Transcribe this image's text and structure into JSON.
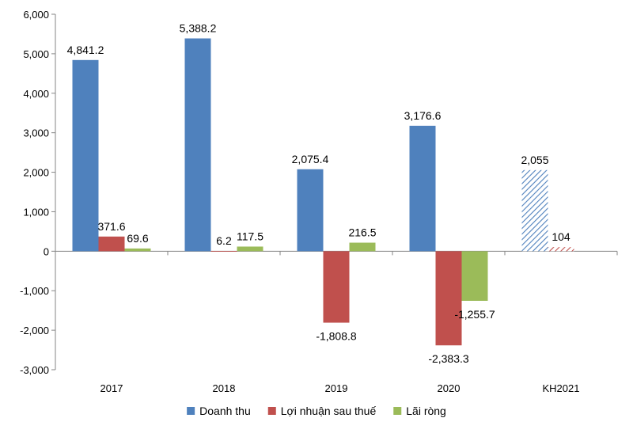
{
  "chart_data": {
    "type": "bar",
    "categories": [
      "2017",
      "2018",
      "2019",
      "2020",
      "KH2021"
    ],
    "series": [
      {
        "name": "Doanh thu",
        "color": "#4F81BD",
        "values": [
          4841.2,
          5388.2,
          2075.4,
          3176.6,
          2055
        ],
        "labels": [
          "4,841.2",
          "5,388.2",
          "2,075.4",
          "3,176.6",
          "2,055"
        ]
      },
      {
        "name": "Lợi nhuận sau thuế",
        "color": "#C0504D",
        "values": [
          371.6,
          6.2,
          -1808.8,
          -2383.3,
          104
        ],
        "labels": [
          "371.6",
          "6.2",
          "-1,808.8",
          "-2,383.3",
          "104"
        ]
      },
      {
        "name": "Lãi ròng",
        "color": "#9BBB59",
        "values": [
          69.6,
          117.5,
          216.5,
          -1255.7,
          null
        ],
        "labels": [
          "69.6",
          "117.5",
          "216.5",
          "-1,255.7",
          ""
        ]
      }
    ],
    "hatched_categories": [
      "KH2021"
    ],
    "ylim": [
      -3000,
      6000
    ],
    "yticks": [
      6000,
      5000,
      4000,
      3000,
      2000,
      1000,
      0,
      -1000,
      -2000,
      -3000
    ],
    "ytick_labels": [
      "6,000",
      "5,000",
      "4,000",
      "3,000",
      "2,000",
      "1,000",
      "0",
      "-1,000",
      "-2,000",
      "-3,000"
    ],
    "grid": false,
    "legend_position": "bottom"
  }
}
